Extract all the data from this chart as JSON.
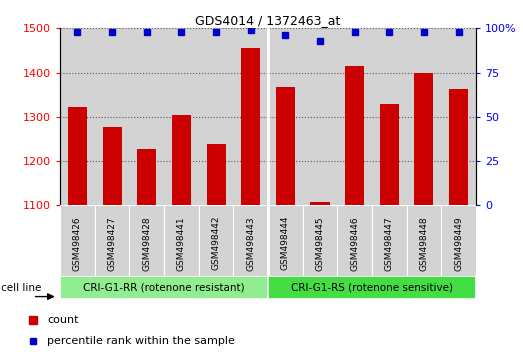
{
  "title": "GDS4014 / 1372463_at",
  "samples": [
    "GSM498426",
    "GSM498427",
    "GSM498428",
    "GSM498441",
    "GSM498442",
    "GSM498443",
    "GSM498444",
    "GSM498445",
    "GSM498446",
    "GSM498447",
    "GSM498448",
    "GSM498449"
  ],
  "counts": [
    1322,
    1278,
    1228,
    1305,
    1238,
    1455,
    1367,
    1108,
    1415,
    1330,
    1400,
    1362
  ],
  "percentile_ranks": [
    98,
    98,
    98,
    98,
    98,
    99,
    96,
    93,
    98,
    98,
    98,
    98
  ],
  "bar_color": "#cc0000",
  "dot_color": "#0000cc",
  "ylim_left": [
    1100,
    1500
  ],
  "ylim_right": [
    0,
    100
  ],
  "yticks_left": [
    1100,
    1200,
    1300,
    1400,
    1500
  ],
  "yticks_right": [
    0,
    25,
    50,
    75,
    100
  ],
  "group1_label": "CRI-G1-RR (rotenone resistant)",
  "group2_label": "CRI-G1-RS (rotenone sensitive)",
  "group1_count": 6,
  "group2_count": 6,
  "cell_line_label": "cell line",
  "legend_count_label": "count",
  "legend_pct_label": "percentile rank within the sample",
  "group1_color": "#90ee90",
  "group2_color": "#44dd44",
  "bar_bg_color": "#d3d3d3",
  "grid_color": "#555555",
  "bg_color": "#ffffff"
}
